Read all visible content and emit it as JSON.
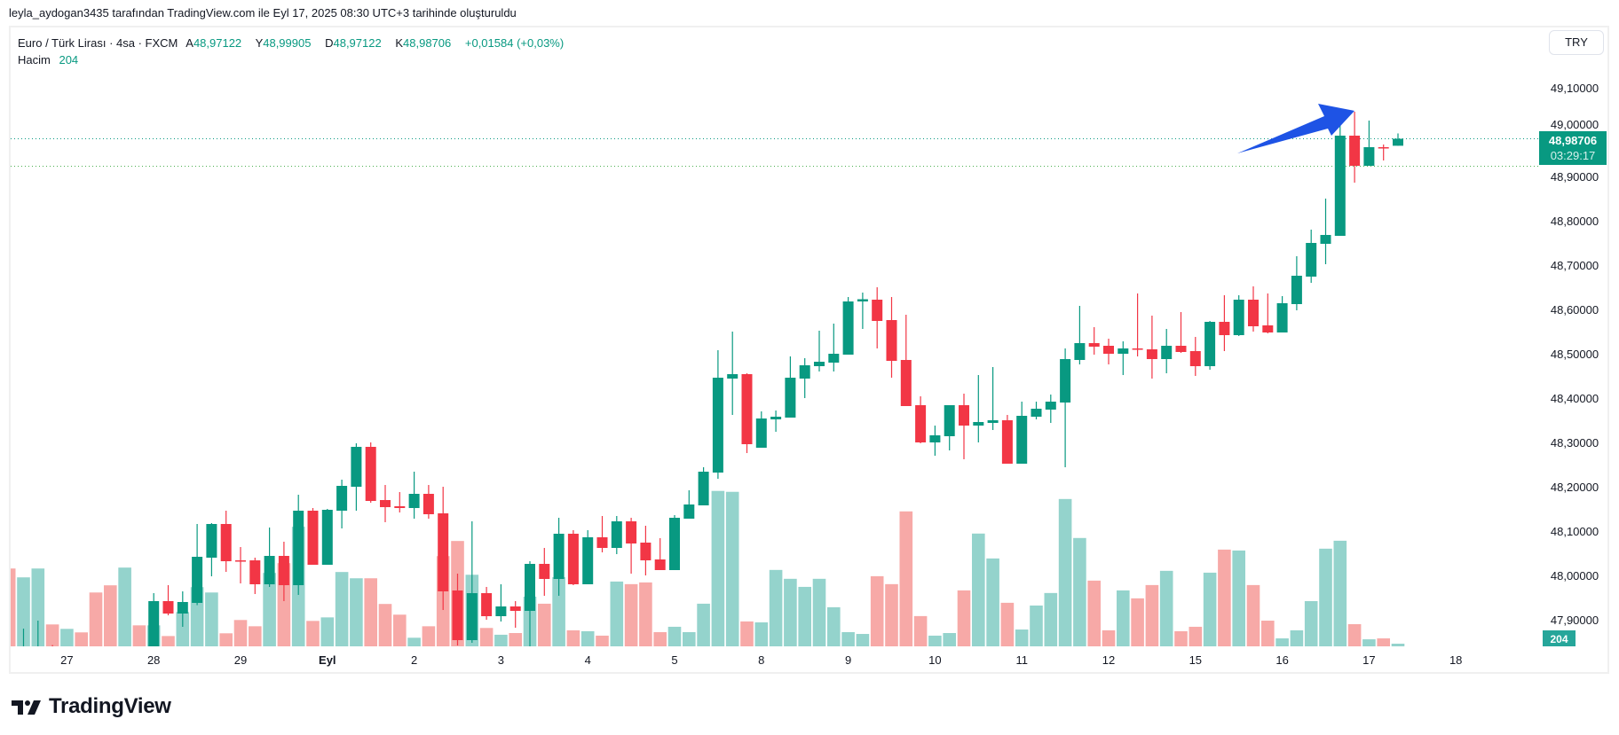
{
  "caption": "leyla_aydogan3435 tarafından TradingView.com ile Eyl 17, 2025 08:30 UTC+3 tarihinde oluşturuldu",
  "legend": {
    "symbol": "Euro / Türk Lirası · 4sa · FXCM",
    "open_label": "A",
    "open": "48,97122",
    "high_label": "Y",
    "high": "48,99905",
    "low_label": "D",
    "low": "48,97122",
    "close_label": "K",
    "close": "48,98706",
    "change": "+0,01584 (+0,03%)",
    "volume_label": "Hacim",
    "volume": "204"
  },
  "currency_button": "TRY",
  "last_price_label": {
    "price": "48,98706",
    "countdown": "03:29:17"
  },
  "volume_label_badge": "204",
  "logo_text": "TradingView",
  "colors": {
    "up": "#089981",
    "down": "#F23645",
    "vol_up": "#94d3cc",
    "vol_down": "#f7a9a7",
    "arrow": "#1e53e5"
  },
  "chart_data": {
    "type": "candlestick",
    "title": "Euro / Türk Lirası · 4sa · FXCM",
    "ylim": [
      47.843,
      49.166
    ],
    "y_ticks": [
      {
        "value": 49.1,
        "label": "49,10000"
      },
      {
        "value": 49.0,
        "label": "49,00000"
      },
      {
        "value": 48.9,
        "label": "48,90000"
      },
      {
        "value": 48.8,
        "label": "48,80000"
      },
      {
        "value": 48.7,
        "label": "48,70000"
      },
      {
        "value": 48.6,
        "label": "48,60000"
      },
      {
        "value": 48.5,
        "label": "48,50000"
      },
      {
        "value": 48.4,
        "label": "48,40000"
      },
      {
        "value": 48.3,
        "label": "48,30000"
      },
      {
        "value": 48.2,
        "label": "48,20000"
      },
      {
        "value": 48.1,
        "label": "48,10000"
      },
      {
        "value": 48.0,
        "label": "48,00000"
      },
      {
        "value": 47.9,
        "label": "47,90000"
      }
    ],
    "x_ticks": [
      {
        "index": 4,
        "label": "27"
      },
      {
        "index": 10,
        "label": "28"
      },
      {
        "index": 16,
        "label": "29"
      },
      {
        "index": 22,
        "label": "Eyl",
        "bold": true
      },
      {
        "index": 28,
        "label": "2"
      },
      {
        "index": 34,
        "label": "3"
      },
      {
        "index": 40,
        "label": "4"
      },
      {
        "index": 46,
        "label": "5"
      },
      {
        "index": 52,
        "label": "8"
      },
      {
        "index": 58,
        "label": "9"
      },
      {
        "index": 64,
        "label": "10"
      },
      {
        "index": 70,
        "label": "11"
      },
      {
        "index": 76,
        "label": "12"
      },
      {
        "index": 82,
        "label": "15"
      },
      {
        "index": 88,
        "label": "16"
      },
      {
        "index": 94,
        "label": "17"
      },
      {
        "index": 100,
        "label": "18"
      }
    ],
    "last_price": 48.98706,
    "prev_close_line": 48.925,
    "ohlcv": [
      [
        47.8,
        47.82,
        47.76,
        47.78,
        5970
      ],
      [
        47.79,
        47.882,
        47.76,
        47.82,
        5290
      ],
      [
        47.8,
        47.9,
        47.78,
        47.83,
        5970
      ],
      [
        47.83,
        47.845,
        47.78,
        47.8,
        1680
      ],
      [
        47.79,
        47.83,
        47.77,
        47.81,
        1340
      ],
      [
        47.81,
        47.83,
        47.77,
        47.79,
        1070
      ],
      [
        47.8,
        47.82,
        47.75,
        47.77,
        4130
      ],
      [
        47.78,
        47.8,
        47.73,
        47.75,
        4680
      ],
      [
        47.75,
        47.82,
        47.74,
        47.8,
        6040
      ],
      [
        47.82,
        47.83,
        47.79,
        47.81,
        1610
      ],
      [
        47.81,
        47.962,
        47.8,
        47.944,
        1610
      ],
      [
        47.944,
        47.98,
        47.912,
        47.916,
        790
      ],
      [
        47.916,
        47.966,
        47.886,
        47.942,
        2630
      ],
      [
        47.94,
        48.118,
        47.935,
        48.044,
        4540
      ],
      [
        48.042,
        48.12,
        48.0,
        48.118,
        4130
      ],
      [
        48.118,
        48.148,
        48.01,
        48.034,
        1000
      ],
      [
        48.036,
        48.066,
        47.984,
        48.034,
        2020
      ],
      [
        48.036,
        48.042,
        47.96,
        47.982,
        1540
      ],
      [
        47.982,
        48.11,
        47.976,
        48.046,
        5630
      ],
      [
        48.046,
        48.078,
        47.944,
        47.98,
        6380
      ],
      [
        47.98,
        48.184,
        47.958,
        48.148,
        9170
      ],
      [
        48.148,
        48.154,
        48.026,
        48.026,
        1950
      ],
      [
        48.026,
        48.152,
        48.026,
        48.15,
        2220
      ],
      [
        48.148,
        48.218,
        48.108,
        48.204,
        5700
      ],
      [
        48.202,
        48.3,
        48.148,
        48.292,
        5220
      ],
      [
        48.292,
        48.302,
        48.166,
        48.17,
        5220
      ],
      [
        48.172,
        48.206,
        48.122,
        48.156,
        3250
      ],
      [
        48.158,
        48.19,
        48.144,
        48.154,
        2430
      ],
      [
        48.154,
        48.236,
        48.13,
        48.186,
        660
      ],
      [
        48.186,
        48.206,
        48.13,
        48.14,
        1540
      ],
      [
        48.142,
        48.202,
        47.924,
        47.966,
        6920
      ],
      [
        47.968,
        48.006,
        47.844,
        47.856,
        8080
      ],
      [
        47.856,
        48.124,
        47.85,
        47.962,
        5490
      ],
      [
        47.962,
        47.976,
        47.902,
        47.91,
        1410
      ],
      [
        47.91,
        47.982,
        47.898,
        47.932,
        890
      ],
      [
        47.932,
        47.944,
        47.884,
        47.922,
        1020
      ],
      [
        47.922,
        48.034,
        47.83,
        48.028,
        3810
      ],
      [
        48.028,
        48.064,
        47.956,
        47.994,
        3270
      ],
      [
        47.994,
        48.132,
        47.956,
        48.096,
        5310
      ],
      [
        48.096,
        48.104,
        47.98,
        47.982,
        1230
      ],
      [
        47.982,
        48.104,
        47.982,
        48.088,
        1160
      ],
      [
        48.088,
        48.136,
        48.054,
        48.064,
        820
      ],
      [
        48.064,
        48.136,
        48.05,
        48.124,
        4970
      ],
      [
        48.124,
        48.132,
        48.006,
        48.074,
        4770
      ],
      [
        48.076,
        48.114,
        48.002,
        48.036,
        4900
      ],
      [
        48.038,
        48.086,
        48.014,
        48.014,
        1090
      ],
      [
        48.014,
        48.138,
        48.014,
        48.132,
        1500
      ],
      [
        48.13,
        48.194,
        48.13,
        48.162,
        1090
      ],
      [
        48.16,
        48.246,
        48.16,
        48.236,
        3270
      ],
      [
        48.234,
        48.51,
        48.22,
        48.448,
        11920
      ],
      [
        48.446,
        48.552,
        48.364,
        48.456,
        11850
      ],
      [
        48.456,
        48.458,
        48.278,
        48.298,
        1910
      ],
      [
        48.29,
        48.372,
        48.29,
        48.356,
        1840
      ],
      [
        48.354,
        48.374,
        48.326,
        48.36,
        5860
      ],
      [
        48.358,
        48.496,
        48.358,
        48.448,
        5180
      ],
      [
        48.446,
        48.492,
        48.402,
        48.476,
        4560
      ],
      [
        48.474,
        48.554,
        48.462,
        48.484,
        5180
      ],
      [
        48.482,
        48.57,
        48.462,
        48.502,
        3000
      ],
      [
        48.5,
        48.63,
        48.5,
        48.62,
        1090
      ],
      [
        48.62,
        48.64,
        48.558,
        48.625,
        950
      ],
      [
        48.624,
        48.652,
        48.514,
        48.576,
        5380
      ],
      [
        48.578,
        48.63,
        48.448,
        48.486,
        4770
      ],
      [
        48.488,
        48.59,
        48.384,
        48.384,
        10350
      ],
      [
        48.386,
        48.406,
        48.3,
        48.302,
        2320
      ],
      [
        48.302,
        48.34,
        48.272,
        48.318,
        820
      ],
      [
        48.316,
        48.386,
        48.284,
        48.386,
        1020
      ],
      [
        48.386,
        48.412,
        48.264,
        48.34,
        4290
      ],
      [
        48.34,
        48.454,
        48.302,
        48.348,
        8650
      ],
      [
        48.346,
        48.472,
        48.33,
        48.352,
        6740
      ],
      [
        48.352,
        48.364,
        48.254,
        48.254,
        3340
      ],
      [
        48.254,
        48.394,
        48.254,
        48.362,
        1290
      ],
      [
        48.36,
        48.394,
        48.354,
        48.378,
        3130
      ],
      [
        48.376,
        48.41,
        48.346,
        48.394,
        4090
      ],
      [
        48.392,
        48.514,
        48.246,
        48.49,
        11300
      ],
      [
        48.488,
        48.61,
        48.478,
        48.526,
        8310
      ],
      [
        48.526,
        48.562,
        48.5,
        48.518,
        5040
      ],
      [
        48.52,
        48.536,
        48.478,
        48.502,
        1230
      ],
      [
        48.502,
        48.53,
        48.454,
        48.514,
        4290
      ],
      [
        48.514,
        48.638,
        48.496,
        48.512,
        3680
      ],
      [
        48.512,
        48.588,
        48.446,
        48.49,
        4700
      ],
      [
        48.49,
        48.558,
        48.458,
        48.52,
        5790
      ],
      [
        48.52,
        48.596,
        48.504,
        48.506,
        1160
      ],
      [
        48.508,
        48.54,
        48.452,
        48.474,
        1500
      ],
      [
        48.474,
        48.576,
        48.466,
        48.574,
        5650
      ],
      [
        48.574,
        48.634,
        48.508,
        48.544,
        7420
      ],
      [
        48.544,
        48.634,
        48.542,
        48.624,
        7350
      ],
      [
        48.624,
        48.654,
        48.552,
        48.564,
        4700
      ],
      [
        48.566,
        48.638,
        48.548,
        48.55,
        1970
      ],
      [
        48.55,
        48.632,
        48.55,
        48.616,
        610
      ],
      [
        48.614,
        48.722,
        48.6,
        48.678,
        1230
      ],
      [
        48.676,
        48.782,
        48.662,
        48.752,
        3470
      ],
      [
        48.75,
        48.852,
        48.704,
        48.77,
        7490
      ],
      [
        48.768,
        49.024,
        48.768,
        48.994,
        8100
      ],
      [
        48.994,
        49.048,
        48.888,
        48.926,
        1700
      ],
      [
        48.926,
        49.028,
        48.926,
        48.968,
        540
      ],
      [
        48.968,
        48.974,
        48.938,
        48.966,
        610
      ],
      [
        48.97122,
        48.99905,
        48.97122,
        48.98706,
        204
      ]
    ]
  }
}
